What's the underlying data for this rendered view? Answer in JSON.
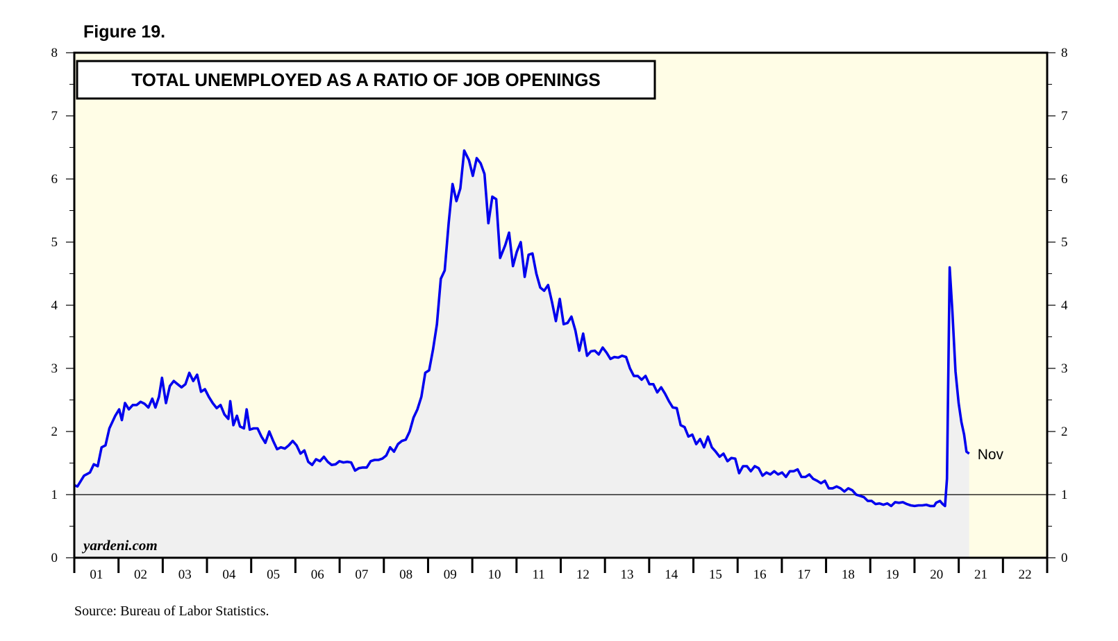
{
  "figure_label": "Figure 19.",
  "source": "Source: Bureau of Labor Statistics.",
  "colors": {
    "plot_bg": "#fffde6",
    "area_fill": "#f0f0f0",
    "line": "#0000ee",
    "frame": "#000000"
  },
  "chart_data": {
    "type": "line",
    "title": "TOTAL UNEMPLOYED AS A RATIO OF JOB OPENINGS",
    "watermark": "yardeni.com",
    "end_label": "Nov",
    "series": [
      {
        "values": []
      }
    ],
    "x_start_year": 2001,
    "x_end_year": 2023,
    "ylim": [
      0,
      8
    ],
    "yticks": [
      "0",
      "1",
      "2",
      "3",
      "4",
      "5",
      "6",
      "7",
      "8"
    ],
    "reference_line": 1,
    "x_tick_labels": [
      "01",
      "02",
      "03",
      "04",
      "05",
      "06",
      "07",
      "08",
      "09",
      "10",
      "11",
      "12",
      "13",
      "14",
      "15",
      "16",
      "17",
      "18",
      "19",
      "20",
      "21",
      "22"
    ],
    "anchor_points": [
      [
        2001.0,
        1.15
      ],
      [
        2001.08,
        1.13
      ],
      [
        2001.25,
        1.3
      ],
      [
        2001.4,
        1.35
      ],
      [
        2001.5,
        1.48
      ],
      [
        2001.6,
        1.45
      ],
      [
        2001.7,
        1.75
      ],
      [
        2001.8,
        1.78
      ],
      [
        2001.9,
        2.05
      ],
      [
        2002.05,
        2.25
      ],
      [
        2002.15,
        2.35
      ],
      [
        2002.22,
        2.18
      ],
      [
        2002.3,
        2.45
      ],
      [
        2002.4,
        2.35
      ],
      [
        2002.5,
        2.42
      ],
      [
        2002.6,
        2.42
      ],
      [
        2002.7,
        2.47
      ],
      [
        2002.8,
        2.44
      ],
      [
        2002.9,
        2.38
      ],
      [
        2003.0,
        2.52
      ],
      [
        2003.08,
        2.38
      ],
      [
        2003.17,
        2.55
      ],
      [
        2003.25,
        2.85
      ],
      [
        2003.35,
        2.45
      ],
      [
        2003.45,
        2.72
      ],
      [
        2003.55,
        2.8
      ],
      [
        2003.65,
        2.75
      ],
      [
        2003.75,
        2.7
      ],
      [
        2003.85,
        2.75
      ],
      [
        2003.95,
        2.93
      ],
      [
        2004.05,
        2.8
      ],
      [
        2004.15,
        2.9
      ],
      [
        2004.25,
        2.63
      ],
      [
        2004.35,
        2.67
      ],
      [
        2004.45,
        2.55
      ],
      [
        2004.55,
        2.45
      ],
      [
        2004.65,
        2.37
      ],
      [
        2004.75,
        2.42
      ],
      [
        2004.85,
        2.27
      ],
      [
        2004.95,
        2.2
      ],
      [
        2005.0,
        2.48
      ],
      [
        2005.08,
        2.1
      ],
      [
        2005.17,
        2.25
      ],
      [
        2005.25,
        2.08
      ],
      [
        2005.35,
        2.05
      ],
      [
        2005.42,
        2.35
      ],
      [
        2005.5,
        2.03
      ],
      [
        2005.6,
        2.05
      ],
      [
        2005.7,
        2.05
      ],
      [
        2005.8,
        1.92
      ],
      [
        2005.9,
        1.82
      ],
      [
        2006.0,
        2.0
      ],
      [
        2006.1,
        1.85
      ],
      [
        2006.2,
        1.72
      ],
      [
        2006.3,
        1.75
      ],
      [
        2006.4,
        1.73
      ],
      [
        2006.5,
        1.78
      ],
      [
        2006.6,
        1.85
      ],
      [
        2006.7,
        1.78
      ],
      [
        2006.8,
        1.65
      ],
      [
        2006.9,
        1.7
      ],
      [
        2007.0,
        1.52
      ],
      [
        2007.1,
        1.47
      ],
      [
        2007.2,
        1.56
      ],
      [
        2007.3,
        1.53
      ],
      [
        2007.4,
        1.6
      ],
      [
        2007.5,
        1.52
      ],
      [
        2007.6,
        1.47
      ],
      [
        2007.7,
        1.48
      ],
      [
        2007.8,
        1.53
      ],
      [
        2007.9,
        1.51
      ],
      [
        2008.0,
        1.52
      ],
      [
        2008.1,
        1.51
      ],
      [
        2008.2,
        1.38
      ],
      [
        2008.3,
        1.42
      ],
      [
        2008.4,
        1.43
      ],
      [
        2008.5,
        1.43
      ],
      [
        2008.6,
        1.53
      ],
      [
        2008.7,
        1.55
      ],
      [
        2008.8,
        1.55
      ],
      [
        2008.9,
        1.57
      ],
      [
        2009.0,
        1.62
      ],
      [
        2009.1,
        1.75
      ],
      [
        2009.2,
        1.68
      ],
      [
        2009.3,
        1.8
      ],
      [
        2009.4,
        1.85
      ],
      [
        2009.5,
        1.87
      ],
      [
        2009.6,
        2.0
      ],
      [
        2009.7,
        2.22
      ],
      [
        2009.8,
        2.35
      ],
      [
        2009.9,
        2.55
      ],
      [
        2010.0,
        2.93
      ],
      [
        2010.1,
        2.97
      ],
      [
        2010.2,
        3.3
      ],
      [
        2010.3,
        3.7
      ],
      [
        2010.4,
        4.42
      ],
      [
        2010.5,
        4.55
      ],
      [
        2010.6,
        5.3
      ],
      [
        2010.7,
        5.92
      ],
      [
        2010.8,
        5.65
      ],
      [
        2010.9,
        5.85
      ],
      [
        2011.0,
        6.45
      ],
      [
        2011.12,
        6.3
      ],
      [
        2011.22,
        6.05
      ],
      [
        2011.32,
        6.33
      ],
      [
        2011.42,
        6.25
      ],
      [
        2011.52,
        6.08
      ],
      [
        2011.62,
        5.3
      ],
      [
        2011.72,
        5.72
      ],
      [
        2011.82,
        5.68
      ],
      [
        2011.92,
        4.75
      ],
      [
        2012.05,
        4.95
      ],
      [
        2012.15,
        5.15
      ],
      [
        2012.25,
        4.62
      ],
      [
        2012.35,
        4.85
      ],
      [
        2012.45,
        5.0
      ],
      [
        2012.55,
        4.45
      ],
      [
        2012.65,
        4.8
      ],
      [
        2012.75,
        4.82
      ],
      [
        2012.85,
        4.5
      ],
      [
        2012.95,
        4.28
      ],
      [
        2013.05,
        4.23
      ],
      [
        2013.15,
        4.32
      ],
      [
        2013.25,
        4.05
      ],
      [
        2013.35,
        3.75
      ],
      [
        2013.45,
        4.1
      ],
      [
        2013.55,
        3.7
      ],
      [
        2013.65,
        3.72
      ],
      [
        2013.75,
        3.82
      ],
      [
        2013.85,
        3.6
      ],
      [
        2013.95,
        3.28
      ],
      [
        2014.05,
        3.55
      ],
      [
        2014.15,
        3.2
      ],
      [
        2014.25,
        3.27
      ],
      [
        2014.35,
        3.28
      ],
      [
        2014.45,
        3.22
      ],
      [
        2014.55,
        3.33
      ],
      [
        2014.65,
        3.25
      ],
      [
        2014.75,
        3.15
      ],
      [
        2014.85,
        3.18
      ],
      [
        2014.95,
        3.17
      ],
      [
        2015.05,
        3.2
      ],
      [
        2015.15,
        3.18
      ],
      [
        2015.25,
        3.0
      ],
      [
        2015.35,
        2.88
      ],
      [
        2015.45,
        2.88
      ],
      [
        2015.55,
        2.82
      ],
      [
        2015.65,
        2.88
      ],
      [
        2015.75,
        2.75
      ],
      [
        2015.85,
        2.75
      ],
      [
        2015.95,
        2.62
      ],
      [
        2016.05,
        2.7
      ],
      [
        2016.15,
        2.6
      ],
      [
        2016.25,
        2.48
      ],
      [
        2016.35,
        2.38
      ],
      [
        2016.45,
        2.37
      ],
      [
        2016.55,
        2.1
      ],
      [
        2016.65,
        2.07
      ],
      [
        2016.75,
        1.92
      ],
      [
        2016.85,
        1.95
      ],
      [
        2016.95,
        1.8
      ],
      [
        2017.05,
        1.88
      ],
      [
        2017.15,
        1.75
      ],
      [
        2017.25,
        1.92
      ],
      [
        2017.35,
        1.75
      ],
      [
        2017.45,
        1.68
      ],
      [
        2017.55,
        1.6
      ],
      [
        2017.65,
        1.65
      ],
      [
        2017.75,
        1.53
      ],
      [
        2017.85,
        1.58
      ],
      [
        2017.95,
        1.57
      ],
      [
        2018.05,
        1.34
      ],
      [
        2018.15,
        1.45
      ],
      [
        2018.25,
        1.45
      ],
      [
        2018.35,
        1.37
      ],
      [
        2018.45,
        1.45
      ],
      [
        2018.55,
        1.42
      ],
      [
        2018.65,
        1.3
      ],
      [
        2018.75,
        1.35
      ],
      [
        2018.85,
        1.32
      ],
      [
        2018.95,
        1.37
      ],
      [
        2019.05,
        1.32
      ],
      [
        2019.15,
        1.35
      ],
      [
        2019.25,
        1.28
      ],
      [
        2019.35,
        1.37
      ],
      [
        2019.45,
        1.37
      ],
      [
        2019.55,
        1.4
      ],
      [
        2019.65,
        1.28
      ],
      [
        2019.75,
        1.28
      ],
      [
        2019.85,
        1.32
      ],
      [
        2019.95,
        1.25
      ],
      [
        2020.05,
        1.22
      ],
      [
        2020.15,
        1.18
      ],
      [
        2020.25,
        1.22
      ],
      [
        2020.35,
        1.1
      ],
      [
        2020.45,
        1.1
      ],
      [
        2020.55,
        1.13
      ],
      [
        2020.65,
        1.1
      ],
      [
        2020.75,
        1.05
      ],
      [
        2020.85,
        1.1
      ],
      [
        2020.95,
        1.07
      ],
      [
        2021.05,
        1.0
      ],
      [
        2021.15,
        0.98
      ],
      [
        2021.25,
        0.96
      ],
      [
        2021.35,
        0.9
      ],
      [
        2021.45,
        0.9
      ],
      [
        2021.55,
        0.85
      ],
      [
        2021.65,
        0.86
      ],
      [
        2021.75,
        0.84
      ],
      [
        2021.85,
        0.86
      ],
      [
        2021.95,
        0.82
      ],
      [
        2022.05,
        0.88
      ],
      [
        2022.15,
        0.87
      ],
      [
        2022.25,
        0.88
      ],
      [
        2022.35,
        0.85
      ],
      [
        2022.45,
        0.83
      ],
      [
        2022.55,
        0.82
      ],
      [
        2022.65,
        0.83
      ],
      [
        2022.75,
        0.83
      ],
      [
        2022.85,
        0.84
      ],
      [
        2022.95,
        0.82
      ],
      [
        2023.05,
        0.82
      ],
      [
        2023.1,
        0.87
      ],
      [
        2023.2,
        0.9
      ],
      [
        2023.27,
        0.85
      ],
      [
        2023.33,
        0.82
      ],
      [
        2023.38,
        1.25
      ],
      [
        2023.45,
        4.6
      ],
      [
        2023.52,
        3.9
      ],
      [
        2023.6,
        2.95
      ],
      [
        2023.68,
        2.45
      ],
      [
        2023.75,
        2.15
      ],
      [
        2023.82,
        1.95
      ],
      [
        2023.88,
        1.68
      ],
      [
        2023.95,
        1.65
      ]
    ]
  }
}
